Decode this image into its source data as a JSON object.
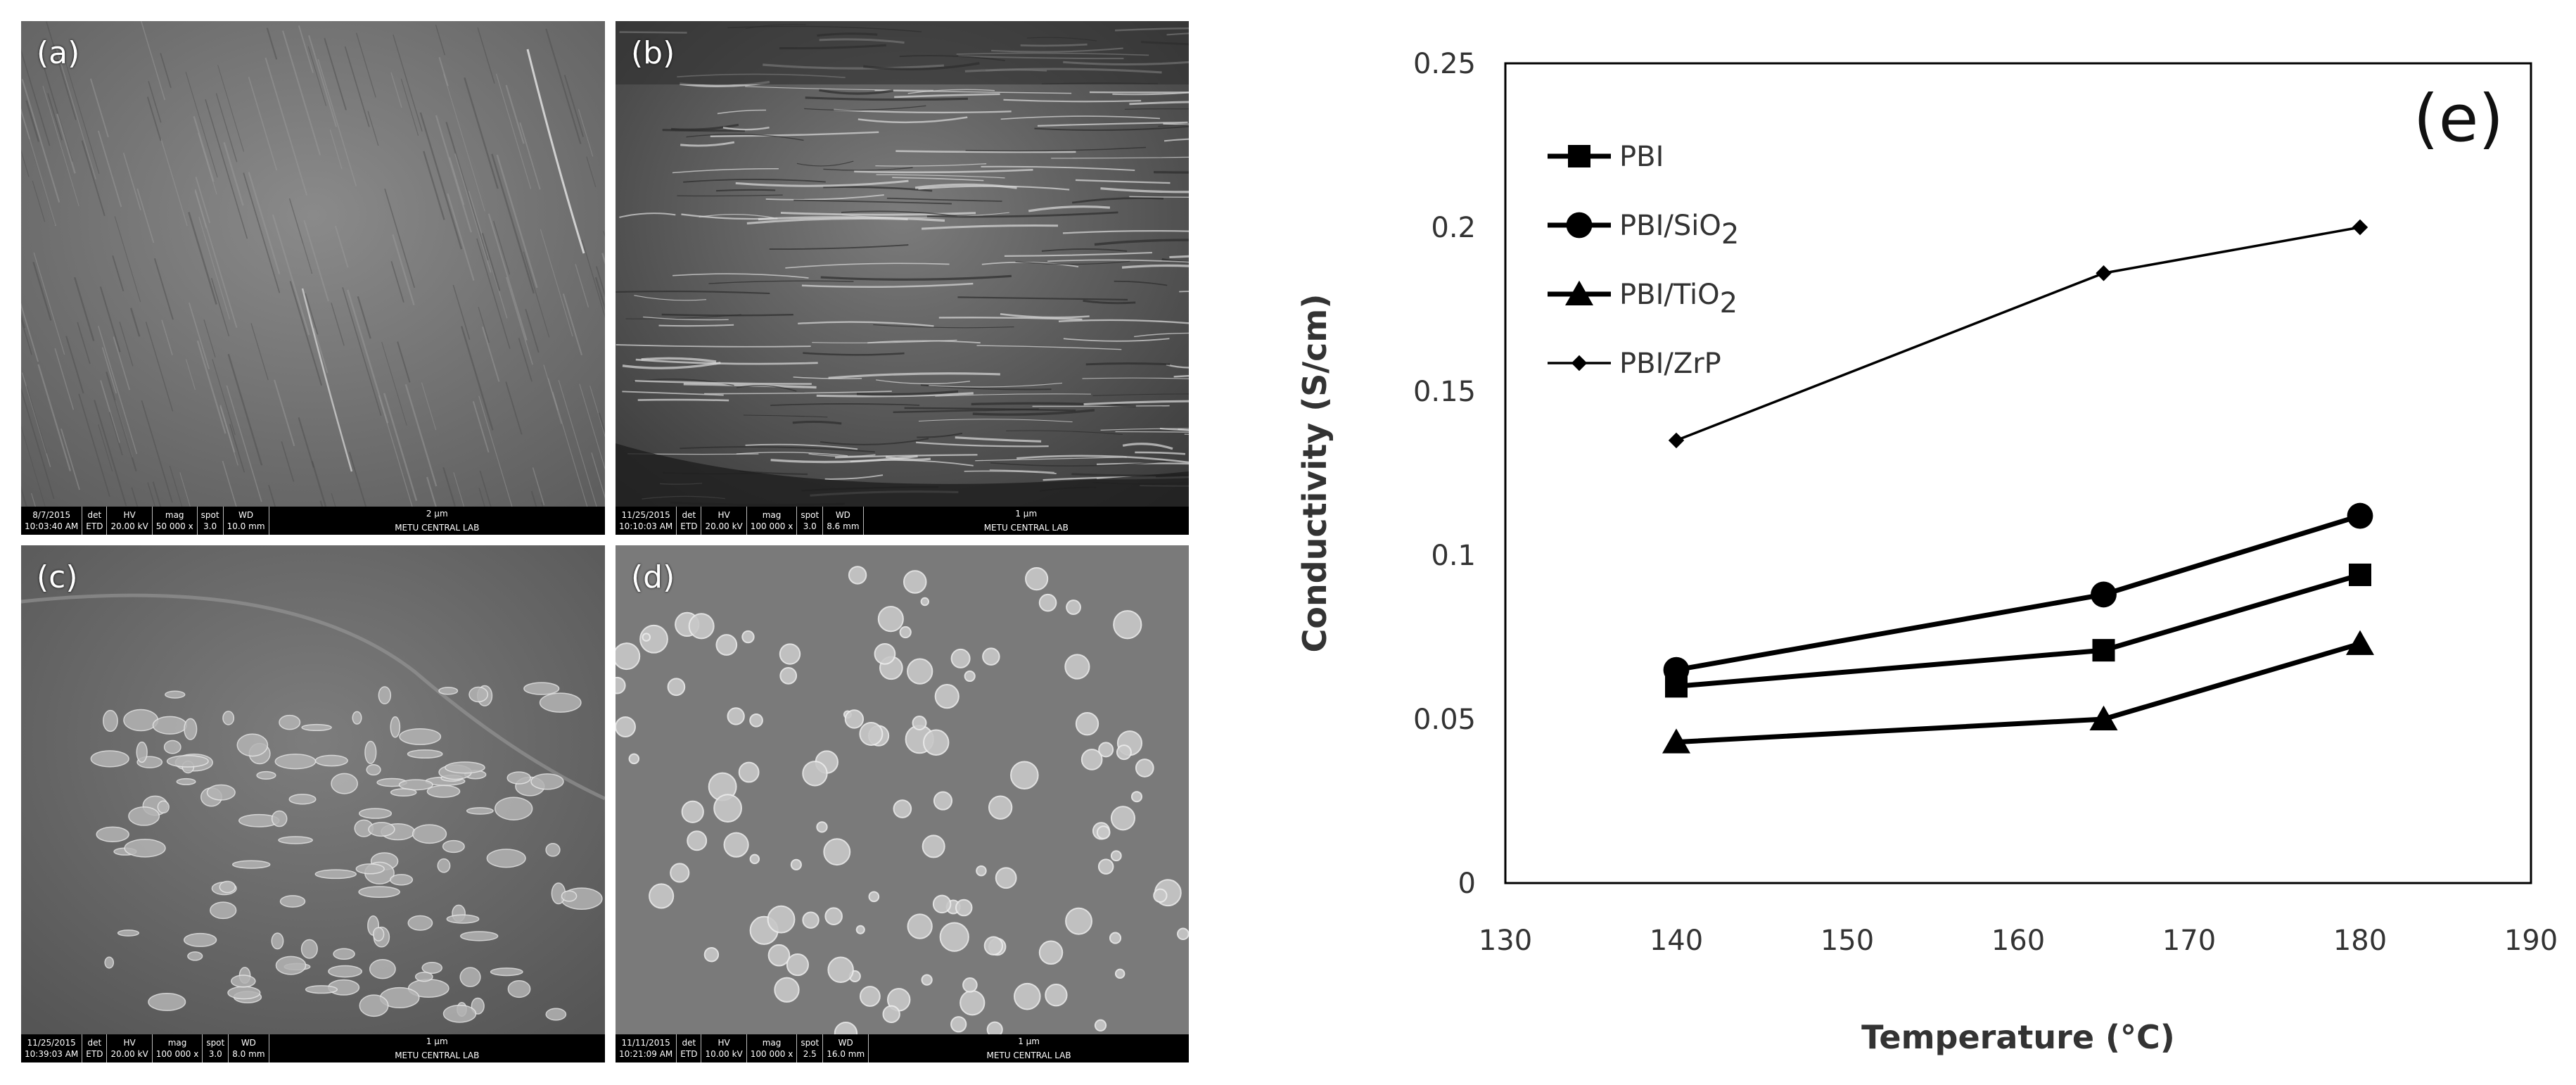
{
  "panels": [
    {
      "label": "(a)",
      "date": "8/7/2015",
      "time": "10:03:40 AM",
      "det": "ETD",
      "hv": "20.00 kV",
      "mag": "50 000 x",
      "spot": "3.0",
      "wd": "10.0 mm",
      "scale": "2 μm",
      "lab": "METU CENTRAL LAB"
    },
    {
      "label": "(b)",
      "date": "11/25/2015",
      "time": "10:10:03 AM",
      "det": "ETD",
      "hv": "20.00 kV",
      "mag": "100 000 x",
      "spot": "3.0",
      "wd": "8.6 mm",
      "scale": "1 μm",
      "lab": "METU CENTRAL LAB"
    },
    {
      "label": "(c)",
      "date": "11/25/2015",
      "time": "10:39:03 AM",
      "det": "ETD",
      "hv": "20.00 kV",
      "mag": "100 000 x",
      "spot": "3.0",
      "wd": "8.0 mm",
      "scale": "1 μm",
      "lab": "METU CENTRAL LAB"
    },
    {
      "label": "(d)",
      "date": "11/11/2015",
      "time": "10:21:09 AM",
      "det": "ETD",
      "hv": "10.00 kV",
      "mag": "100 000 x",
      "spot": "2.5",
      "wd": "16.0 mm",
      "scale": "1 μm",
      "lab": "METU CENTRAL LAB"
    }
  ],
  "infobar_headers": {
    "det": "det",
    "hv": "HV",
    "mag": "mag",
    "spot": "spot",
    "wd": "WD"
  },
  "chart_data": {
    "type": "line",
    "panel_label": "(e)",
    "title": "",
    "xlabel": "Temperature (°C)",
    "ylabel": "Conductivity (S/cm)",
    "xlim": [
      130,
      190
    ],
    "ylim": [
      0,
      0.25
    ],
    "xticks": [
      130,
      140,
      150,
      160,
      170,
      180,
      190
    ],
    "yticks": [
      0,
      0.05,
      0.1,
      0.15,
      0.2,
      0.25
    ],
    "xtick_labels": [
      "130",
      "140",
      "150",
      "160",
      "170",
      "180",
      "190"
    ],
    "ytick_labels": [
      "0",
      "0.05",
      "0.1",
      "0.15",
      "0.2",
      "0.25"
    ],
    "grid": false,
    "legend_position": "top-left",
    "x": [
      140,
      165,
      180
    ],
    "series": [
      {
        "name": "PBI",
        "name_base": "PBI",
        "name_sub": "",
        "marker": "square",
        "line": "thick",
        "values": [
          0.06,
          0.071,
          0.094
        ]
      },
      {
        "name": "PBI/SiO2",
        "name_base": "PBI/SiO",
        "name_sub": "2",
        "marker": "circle",
        "line": "thick",
        "values": [
          0.065,
          0.088,
          0.112
        ]
      },
      {
        "name": "PBI/TiO2",
        "name_base": "PBI/TiO",
        "name_sub": "2",
        "marker": "triangle",
        "line": "thick",
        "values": [
          0.043,
          0.05,
          0.073
        ]
      },
      {
        "name": "PBI/ZrP",
        "name_base": "PBI/ZrP",
        "name_sub": "",
        "marker": "diamond",
        "line": "thin",
        "values": [
          0.135,
          0.186,
          0.2
        ]
      }
    ],
    "colors": {
      "line": "#000000"
    }
  }
}
